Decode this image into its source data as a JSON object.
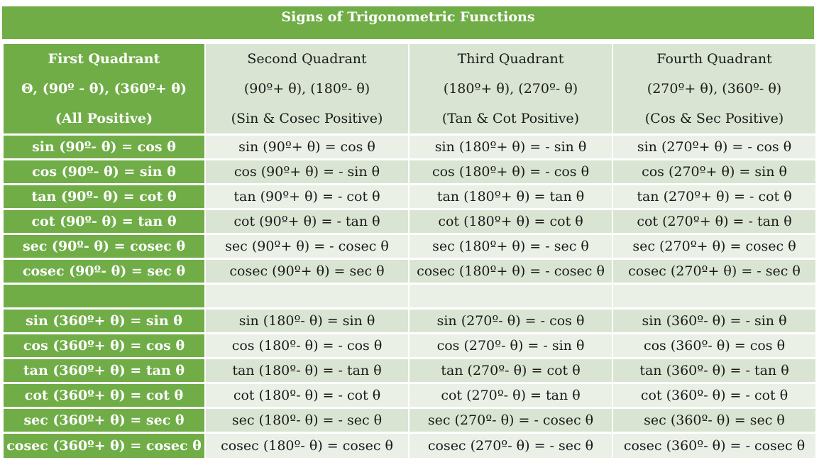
{
  "title": "Signs of Trigonometric Functions",
  "headers": [
    {
      "name": "First Quadrant",
      "angles": "Θ, (90º - θ), (360º+ θ)",
      "sign": "(All Positive)"
    },
    {
      "name": "Second Quadrant",
      "angles": "(90º+ θ), (180º- θ)",
      "sign": "(Sin & Cosec Positive)"
    },
    {
      "name": "Third Quadrant",
      "angles": "(180º+ θ), (270º- θ)",
      "sign": "(Tan & Cot Positive)"
    },
    {
      "name": "Fourth Quadrant",
      "angles": "(270º+ θ), (360º- θ)",
      "sign": "(Cos & Sec Positive)"
    }
  ],
  "group1": [
    [
      "sin (90º- θ) = cos θ",
      "sin (90º+ θ) = cos θ",
      "sin (180º+ θ) = - sin θ",
      "sin (270º+ θ) = - cos θ"
    ],
    [
      "cos (90º- θ) = sin θ",
      "cos (90º+ θ) = - sin θ",
      "cos (180º+ θ) = - cos θ",
      "cos (270º+ θ) = sin θ"
    ],
    [
      "tan (90º- θ) = cot θ",
      "tan (90º+ θ) = - cot θ",
      "tan (180º+ θ) = tan θ",
      "tan (270º+ θ) = - cot θ"
    ],
    [
      "cot (90º- θ) = tan θ",
      "cot (90º+ θ) = - tan θ",
      "cot (180º+ θ) = cot θ",
      "cot (270º+ θ) = - tan θ"
    ],
    [
      "sec (90º- θ) = cosec θ",
      "sec (90º+ θ) = - cosec θ",
      "sec (180º+ θ) = - sec θ",
      "sec (270º+ θ) = cosec θ"
    ],
    [
      "cosec (90º- θ) = sec θ",
      "cosec (90º+ θ) = sec θ",
      "cosec (180º+ θ) = - cosec θ",
      "cosec (270º+ θ) = - sec θ"
    ]
  ],
  "group2": [
    [
      "sin (360º+ θ) = sin θ",
      "sin (180º- θ) = sin θ",
      "sin (270º- θ) = - cos θ",
      "sin (360º- θ) = - sin θ"
    ],
    [
      "cos (360º+ θ) = cos θ",
      "cos (180º- θ) = - cos θ",
      "cos (270º- θ) = - sin θ",
      "cos (360º- θ) = cos θ"
    ],
    [
      "tan (360º+ θ) = tan θ",
      "tan (180º- θ) = - tan θ",
      "tan (270º- θ) = cot θ",
      "tan (360º- θ) = - tan θ"
    ],
    [
      "cot (360º+ θ) = cot θ",
      "cot (180º- θ) = - cot θ",
      "cot (270º- θ) = tan θ",
      "cot (360º- θ) = - cot θ"
    ],
    [
      "sec (360º+ θ) = sec θ",
      "sec (180º- θ) = - sec θ",
      "sec (270º- θ) = - cosec θ",
      "sec (360º- θ) = sec θ"
    ],
    [
      "cosec (360º+ θ) = cosec θ",
      "cosec (180º- θ) = cosec θ",
      "cosec (270º- θ) = - sec θ",
      "cosec (360º- θ) = - cosec θ"
    ]
  ],
  "colors": {
    "header_green": "#70ad47",
    "cell_dark": "#d9e5d2",
    "cell_light": "#eaf0e6"
  }
}
